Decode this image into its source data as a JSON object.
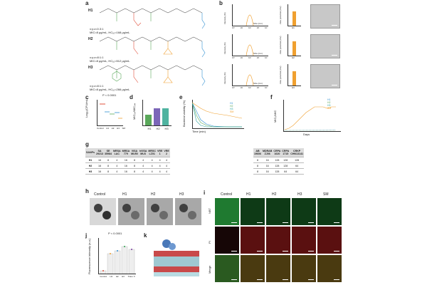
{
  "panels": [
    "a",
    "b",
    "c",
    "d",
    "e",
    "f",
    "g",
    "h",
    "i",
    "j",
    "k"
  ],
  "panel_a": {
    "rows": [
      {
        "name": "H1",
        "ratio": "x:y:z=0.3:1",
        "mic": "MIC=8 μg/mL, HC₁₀=168 μg/mL"
      },
      {
        "name": "H2",
        "ratio": "x:y:z=8:1:1",
        "mic": "MIC=8 μg/mL, HC₁₀=512 μg/mL"
      },
      {
        "name": "H3",
        "ratio": "x:y:z=8:1:1",
        "mic": "MIC=8 μg/mL, HC₁₀=266 μg/mL"
      }
    ]
  },
  "panel_b": {
    "ylabel_dls": "Intensity (%)",
    "xlabel_dls": "Size (nm)",
    "ylabel_zeta": "Zeta potential (mV)",
    "ticks": [
      "10⁰",
      "10¹",
      "10²",
      "10³",
      "10⁴"
    ],
    "rows": [
      "H1",
      "H2",
      "H3"
    ]
  },
  "panel_c": {
    "ylabel": "Log₁₀(CFU/mL)",
    "p": "P < 0.0001",
    "xticks": [
      "Control",
      "H1",
      "H2",
      "H3",
      "SM"
    ],
    "yticks": [
      "5",
      "6",
      "7",
      "8",
      "9"
    ]
  },
  "panel_d": {
    "ylabel": "MIC₅₀/MIC₀ₘ",
    "xticks": [
      "H1",
      "H2",
      "H3"
    ],
    "yticks": [
      "0",
      "1",
      "2",
      "3"
    ]
  },
  "panel_e": {
    "ylabel": "Bacterial viability (%)",
    "xlabel": "Time (min)",
    "xticks": [
      "0",
      "20",
      "40",
      "60",
      "80",
      "100"
    ],
    "yticks": [
      "0",
      "20",
      "40",
      "60",
      "80",
      "100"
    ],
    "legend": [
      "H1",
      "H2",
      "H3",
      "SM"
    ]
  },
  "panel_f": {
    "ylabel": "MIC₀/MIC",
    "xlabel": "Days",
    "xticks": [
      "0",
      "4",
      "8",
      "12",
      "16",
      "20",
      "24",
      "28"
    ],
    "yticks": [
      "0",
      "10",
      "20",
      "30",
      "40"
    ],
    "legend": [
      "H1",
      "H2",
      "H3",
      "SM"
    ]
  },
  "panel_g": {
    "left": {
      "headers": [
        [
          "SANPs",
          ""
        ],
        [
          "SA",
          "29213"
        ],
        [
          "SE",
          "35984"
        ],
        [
          "MRSA",
          "LAC"
        ],
        [
          "MRSA",
          "779"
        ],
        [
          "VISA",
          "MU50"
        ],
        [
          "hVISA",
          "MU3"
        ],
        [
          "MRSC",
          "LZ01"
        ],
        [
          "VRE",
          "1"
        ],
        [
          "VRE",
          "2"
        ]
      ],
      "rows": [
        [
          "H1",
          "16",
          "8",
          "4",
          "16",
          "8",
          "4",
          "4",
          "4",
          "4"
        ],
        [
          "H2",
          "16",
          "8",
          "4",
          "16",
          "8",
          "4",
          "4",
          "4",
          "4"
        ],
        [
          "H3",
          "16",
          "8",
          "4",
          "16",
          "8",
          "4",
          "4",
          "4",
          "4"
        ]
      ]
    },
    "right": {
      "headers": [
        [
          "AB",
          "19606"
        ],
        [
          "MDRAB",
          "ZJ06"
        ],
        [
          "CRPA",
          "1620"
        ],
        [
          "CRPA",
          "1715"
        ],
        [
          "CRKP",
          "CHN13141"
        ]
      ],
      "rows": [
        [
          "8",
          "16",
          "128",
          "128",
          "128"
        ],
        [
          "8",
          "16",
          "128",
          "128",
          "64"
        ],
        [
          "8",
          "16",
          "128",
          "64",
          "64"
        ]
      ]
    }
  },
  "panel_h": {
    "labels": [
      "Control",
      "H1",
      "H2",
      "H3"
    ]
  },
  "panel_i": {
    "cols": [
      "Control",
      "H1",
      "H2",
      "H3",
      "SM"
    ],
    "rows": [
      "NBT",
      "PI",
      "Merge"
    ]
  },
  "panel_j": {
    "ylabel": "Fluorescence intensity (a.u.)",
    "p": "P < 0.0001",
    "xticks": [
      "Control",
      "H1",
      "H2",
      "H3",
      "Triton X"
    ]
  },
  "colors": {
    "h1": "#2f8fd1",
    "h2": "#5aa85a",
    "h3": "#e1503c",
    "sm": "#f0a030",
    "green": "#2ea44f",
    "red": "#d23c3c"
  }
}
